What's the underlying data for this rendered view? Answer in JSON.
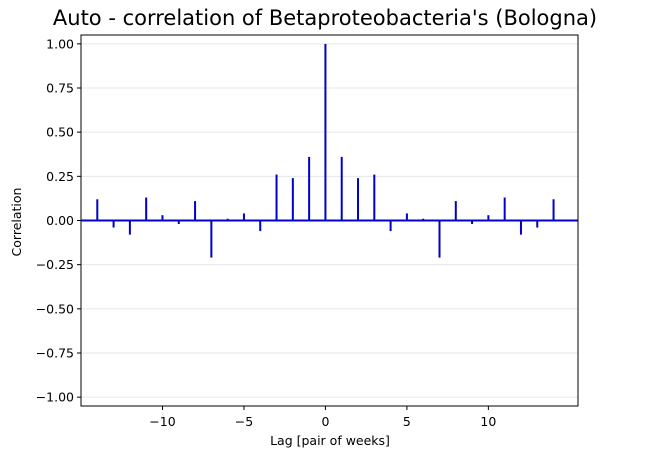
{
  "chart_data": {
    "type": "bar",
    "title": "Auto - correlation of Betaproteobacteria's (Bologna)",
    "xlabel": "Lag [pair of weeks]",
    "ylabel": "Correlation",
    "xlim": [
      -15,
      15.5
    ],
    "ylim": [
      -1.05,
      1.05
    ],
    "xticks": [
      -10,
      -5,
      0,
      5,
      10
    ],
    "xtick_labels": [
      "−10",
      "−5",
      "0",
      "5",
      "10"
    ],
    "yticks": [
      1.0,
      0.75,
      0.5,
      0.25,
      0.0,
      -0.25,
      -0.5,
      -0.75,
      -1.0
    ],
    "ytick_labels": [
      "1.00",
      "0.75",
      "0.50",
      "0.25",
      "0.00",
      "−0.25",
      "−0.50",
      "−0.75",
      "−1.00"
    ],
    "grid": "horizontal",
    "series": [
      {
        "color": "#0000cc",
        "x": [
          -14,
          -13,
          -12,
          -11,
          -10,
          -9,
          -8,
          -7,
          -6,
          -5,
          -4,
          -3,
          -2,
          -1,
          0,
          1,
          2,
          3,
          4,
          5,
          6,
          7,
          8,
          9,
          10,
          11,
          12,
          13,
          14
        ],
        "values": [
          0.12,
          -0.04,
          -0.08,
          0.13,
          0.03,
          -0.02,
          0.11,
          -0.21,
          0.01,
          0.04,
          -0.06,
          0.26,
          0.24,
          0.36,
          1.0,
          0.36,
          0.24,
          0.26,
          -0.06,
          0.04,
          0.01,
          -0.21,
          0.11,
          -0.02,
          0.03,
          0.13,
          -0.08,
          -0.04,
          0.12
        ]
      }
    ],
    "zero_line_color": "#0000cc"
  }
}
